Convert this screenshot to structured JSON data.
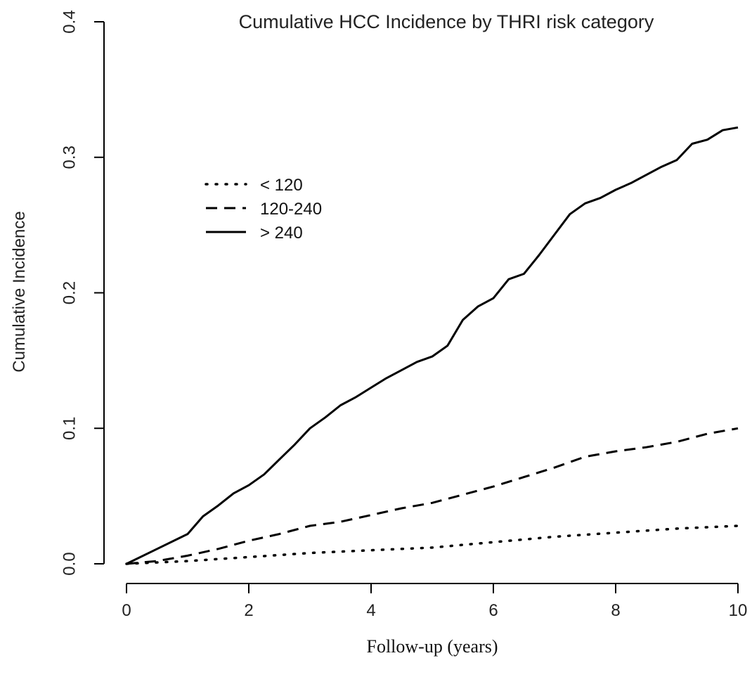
{
  "chart_data": {
    "type": "line",
    "title": "Cumulative HCC Incidence by THRI risk category",
    "xlabel": "Follow-up (years)",
    "ylabel": "Cumulative Incidence",
    "xlim": [
      0,
      10
    ],
    "ylim": [
      0,
      0.4
    ],
    "x_ticks": [
      0,
      2,
      4,
      6,
      8,
      10
    ],
    "x_tick_labels": [
      "0",
      "2",
      "4",
      "6",
      "8",
      "10"
    ],
    "y_ticks": [
      0.0,
      0.1,
      0.2,
      0.3,
      0.4
    ],
    "y_tick_labels": [
      "0.0",
      "0.1",
      "0.2",
      "0.3",
      "0.4"
    ],
    "grid": false,
    "legend_position": "upper-left",
    "series": [
      {
        "name": "< 120",
        "line_style": "dotted",
        "color": "#000000",
        "points": [
          [
            0,
            0
          ],
          [
            1,
            0.002
          ],
          [
            2,
            0.005
          ],
          [
            3,
            0.008
          ],
          [
            4,
            0.01
          ],
          [
            5,
            0.012
          ],
          [
            6,
            0.016
          ],
          [
            7,
            0.02
          ],
          [
            8,
            0.023
          ],
          [
            9,
            0.026
          ],
          [
            10,
            0.028
          ]
        ]
      },
      {
        "name": "120-240",
        "line_style": "dashed",
        "color": "#000000",
        "points": [
          [
            0,
            0
          ],
          [
            0.5,
            0.002
          ],
          [
            1,
            0.006
          ],
          [
            1.5,
            0.011
          ],
          [
            2,
            0.017
          ],
          [
            2.5,
            0.022
          ],
          [
            3,
            0.028
          ],
          [
            3.5,
            0.031
          ],
          [
            4,
            0.036
          ],
          [
            4.5,
            0.041
          ],
          [
            5,
            0.045
          ],
          [
            5.5,
            0.051
          ],
          [
            6,
            0.057
          ],
          [
            6.5,
            0.064
          ],
          [
            7,
            0.071
          ],
          [
            7.5,
            0.079
          ],
          [
            8,
            0.083
          ],
          [
            8.5,
            0.086
          ],
          [
            9,
            0.09
          ],
          [
            9.5,
            0.096
          ],
          [
            10,
            0.1
          ]
        ]
      },
      {
        "name": "> 240",
        "line_style": "solid",
        "color": "#000000",
        "points": [
          [
            0,
            0
          ],
          [
            0.5,
            0.011
          ],
          [
            1,
            0.022
          ],
          [
            1.25,
            0.035
          ],
          [
            1.5,
            0.043
          ],
          [
            1.75,
            0.052
          ],
          [
            2,
            0.058
          ],
          [
            2.25,
            0.066
          ],
          [
            2.5,
            0.077
          ],
          [
            2.75,
            0.088
          ],
          [
            3,
            0.1
          ],
          [
            3.25,
            0.108
          ],
          [
            3.5,
            0.117
          ],
          [
            3.75,
            0.123
          ],
          [
            4,
            0.13
          ],
          [
            4.25,
            0.137
          ],
          [
            4.5,
            0.143
          ],
          [
            4.75,
            0.149
          ],
          [
            5,
            0.153
          ],
          [
            5.25,
            0.161
          ],
          [
            5.5,
            0.18
          ],
          [
            5.75,
            0.19
          ],
          [
            6,
            0.196
          ],
          [
            6.25,
            0.21
          ],
          [
            6.5,
            0.214
          ],
          [
            6.75,
            0.228
          ],
          [
            7,
            0.243
          ],
          [
            7.25,
            0.258
          ],
          [
            7.5,
            0.266
          ],
          [
            7.75,
            0.27
          ],
          [
            8,
            0.276
          ],
          [
            8.25,
            0.281
          ],
          [
            8.5,
            0.287
          ],
          [
            8.75,
            0.293
          ],
          [
            9,
            0.298
          ],
          [
            9.25,
            0.31
          ],
          [
            9.5,
            0.313
          ],
          [
            9.75,
            0.32
          ],
          [
            10,
            0.322
          ]
        ]
      }
    ]
  }
}
